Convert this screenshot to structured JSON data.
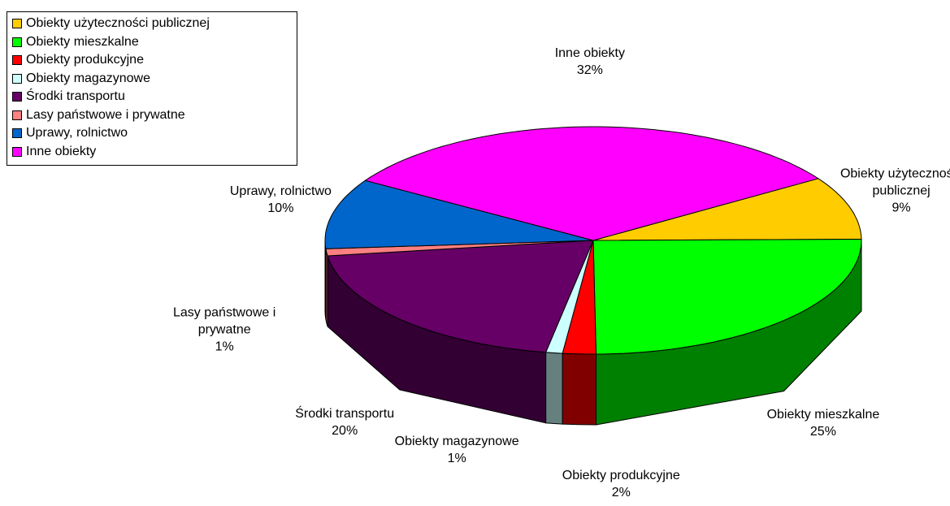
{
  "chart_data": {
    "type": "pie3d",
    "categories": [
      "Obiekty użyteczności publicznej",
      "Obiekty mieszkalne",
      "Obiekty produkcyjne",
      "Obiekty magazynowe",
      "Środki transportu",
      "Lasy państwowe i prywatne",
      "Uprawy, rolnictwo",
      "Inne obiekty"
    ],
    "values": [
      9,
      25,
      2,
      1,
      20,
      1,
      10,
      32
    ],
    "value_labels": [
      "9%",
      "25%",
      "2%",
      "1%",
      "20%",
      "1%",
      "10%",
      "32%"
    ],
    "colors": [
      "#ffcc00",
      "#00ff00",
      "#ff0000",
      "#ccffff",
      "#660066",
      "#ff8080",
      "#0066cc",
      "#ff00ff"
    ],
    "legend": "top-left"
  }
}
